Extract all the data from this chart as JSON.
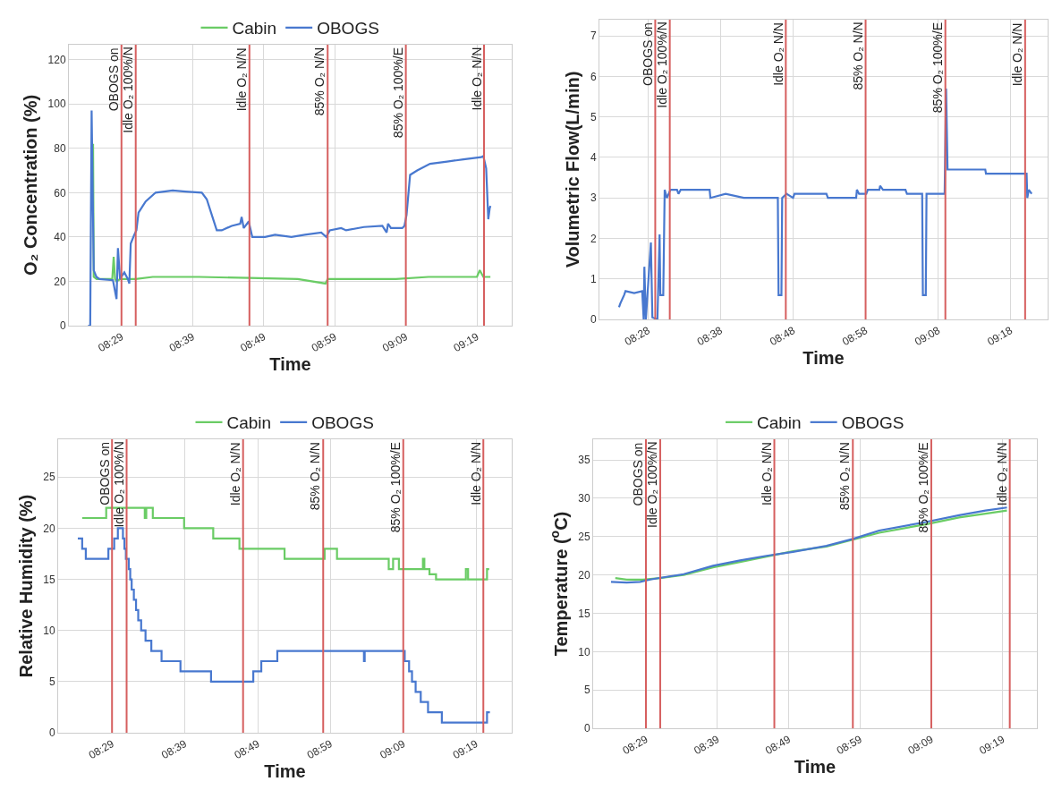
{
  "chart_data": [
    {
      "type": "line",
      "xlabel": "Time",
      "ylabel": "O₂ Concentration (%)",
      "grid": true,
      "legend": "top",
      "xlim": [
        8.36,
        9.3983
      ],
      "xticks": [
        {
          "value": 8.4833,
          "label": "08:29"
        },
        {
          "value": 8.65,
          "label": "08:39"
        },
        {
          "value": 8.8167,
          "label": "08:49"
        },
        {
          "value": 8.9833,
          "label": "08:59"
        },
        {
          "value": 9.15,
          "label": "09:09"
        },
        {
          "value": 9.3167,
          "label": "09:19"
        }
      ],
      "ylim": [
        0,
        126.7
      ],
      "yticks": [
        0,
        20,
        40,
        60,
        80,
        100,
        120
      ],
      "series": [
        {
          "name": "Cabin",
          "color": "#6acc65",
          "x": [
            8.4167,
            8.4183,
            8.425,
            8.4617,
            8.465,
            8.4683,
            8.4717,
            8.48,
            8.5167,
            8.5567,
            8.665,
            8.7817,
            8.8967,
            8.9617,
            8.9667,
            9.1267,
            9.2033,
            9.3167,
            9.3233,
            9.3317,
            9.3483
          ],
          "values": [
            82,
            22,
            21,
            21,
            31,
            21,
            20,
            21,
            21,
            22,
            22,
            21.5,
            21,
            19,
            21,
            21,
            22,
            22,
            25,
            22,
            22
          ]
        },
        {
          "name": "OBOGS",
          "color": "#4878cf",
          "x": [
            8.405,
            8.41,
            8.4133,
            8.4183,
            8.4245,
            8.4317,
            8.4633,
            8.4717,
            8.475,
            8.48,
            8.49,
            8.4983,
            8.5017,
            8.505,
            8.5133,
            8.5183,
            8.5233,
            8.5333,
            8.54,
            8.5633,
            8.6033,
            8.6333,
            8.6717,
            8.6833,
            8.695,
            8.7067,
            8.7183,
            8.7417,
            8.7617,
            8.765,
            8.77,
            8.7817,
            8.79,
            8.82,
            8.8433,
            8.8817,
            8.9133,
            8.9517,
            8.9633,
            8.9717,
            8.9983,
            9.01,
            9.0517,
            9.095,
            9.105,
            9.1083,
            9.115,
            9.1417,
            9.1467,
            9.1517,
            9.16,
            9.1767,
            9.2067,
            9.2467,
            9.285,
            9.3267,
            9.3317,
            9.3383,
            9.3433,
            9.3467,
            9.3483
          ],
          "values": [
            0,
            0,
            97,
            25,
            22,
            21,
            20.5,
            12,
            35,
            21,
            24,
            21,
            19,
            37,
            41,
            43,
            51,
            54,
            56,
            60,
            61,
            60.5,
            60,
            57,
            50,
            43,
            43,
            45,
            46,
            49,
            44,
            47,
            40,
            40,
            41,
            40,
            41,
            42,
            40,
            43,
            44,
            43,
            44.5,
            45,
            42,
            46,
            44,
            44,
            45,
            50,
            68,
            70,
            73,
            74,
            75,
            76,
            76.5,
            71,
            48,
            53,
            54
          ]
        }
      ],
      "ref_lines": [
        {
          "axis": "x",
          "value": 8.4833,
          "label": "OBOGS on",
          "color": "#d65f5f"
        },
        {
          "axis": "x",
          "value": 8.5167,
          "label": "Idle O₂ 100%/N",
          "color": "#d65f5f"
        },
        {
          "axis": "x",
          "value": 8.7833,
          "label": "Idle O₂ N/N",
          "color": "#d65f5f"
        },
        {
          "axis": "x",
          "value": 8.9667,
          "label": "85% O₂ N/N",
          "color": "#d65f5f"
        },
        {
          "axis": "x",
          "value": 9.15,
          "label": "85% O₂ 100%/E",
          "color": "#d65f5f"
        },
        {
          "axis": "x",
          "value": 9.3333,
          "label": "Idle O₂ N/N",
          "color": "#d65f5f"
        }
      ]
    },
    {
      "type": "line",
      "xlabel": "Time",
      "ylabel": "Volumetric Flow(L/min)",
      "grid": true,
      "xlim": [
        8.355,
        9.385
      ],
      "xticks": [
        {
          "value": 8.4667,
          "label": "08:28"
        },
        {
          "value": 8.6333,
          "label": "08:38"
        },
        {
          "value": 8.8,
          "label": "08:48"
        },
        {
          "value": 8.9667,
          "label": "08:58"
        },
        {
          "value": 9.1333,
          "label": "09:08"
        },
        {
          "value": 9.3,
          "label": "09:18"
        }
      ],
      "ylim": [
        0,
        7.4
      ],
      "yticks": [
        0,
        1,
        2,
        3,
        4,
        5,
        6,
        7
      ],
      "series": [
        {
          "color": "#4878cf",
          "x": [
            8.4,
            8.4033,
            8.4117,
            8.415,
            8.435,
            8.4533,
            8.4567,
            8.4583,
            8.4617,
            8.4733,
            8.4767,
            8.4883,
            8.4933,
            8.495,
            8.5017,
            8.505,
            8.51,
            8.5183,
            8.5333,
            8.5367,
            8.5417,
            8.6083,
            8.61,
            8.645,
            8.6867,
            8.765,
            8.7667,
            8.7733,
            8.775,
            8.785,
            8.8,
            8.8033,
            8.8767,
            8.88,
            8.945,
            8.9467,
            8.9517,
            8.9683,
            8.9717,
            8.9983,
            9.0,
            9.0067,
            9.0583,
            9.0617,
            9.0967,
            9.0983,
            9.105,
            9.1067,
            9.1483,
            9.1517,
            9.155,
            9.2417,
            9.2433,
            9.3367,
            9.3383,
            9.3417,
            9.3483
          ],
          "values": [
            0.3,
            0.4,
            0.6,
            0.7,
            0.65,
            0.7,
            0,
            1.3,
            0,
            1.9,
            0.05,
            0,
            2.1,
            0.6,
            0.6,
            3.2,
            3.0,
            3.2,
            3.2,
            3.1,
            3.2,
            3.2,
            3.0,
            3.1,
            3.0,
            3.0,
            0.6,
            0.6,
            3.0,
            3.1,
            3.0,
            3.1,
            3.1,
            3.0,
            3.0,
            3.2,
            3.1,
            3.1,
            3.2,
            3.2,
            3.3,
            3.2,
            3.2,
            3.1,
            3.1,
            0.6,
            0.6,
            3.1,
            3.1,
            5.7,
            3.7,
            3.7,
            3.6,
            3.6,
            3.0,
            3.2,
            3.1
          ]
        }
      ],
      "ref_lines": [
        {
          "axis": "x",
          "value": 8.4833,
          "label": "OBOGS on",
          "color": "#d65f5f"
        },
        {
          "axis": "x",
          "value": 8.5167,
          "label": "Idle O₂ 100%/N",
          "color": "#d65f5f"
        },
        {
          "axis": "x",
          "value": 8.7833,
          "label": "Idle O₂ N/N",
          "color": "#d65f5f"
        },
        {
          "axis": "x",
          "value": 8.9667,
          "label": "85% O₂ N/N",
          "color": "#d65f5f"
        },
        {
          "axis": "x",
          "value": 9.15,
          "label": "85% O₂ 100%/E",
          "color": "#d65f5f"
        },
        {
          "axis": "x",
          "value": 9.3333,
          "label": "Idle O₂ N/N",
          "color": "#d65f5f"
        }
      ]
    },
    {
      "type": "step",
      "xlabel": "Time",
      "ylabel": "Relative Humidity (%)",
      "grid": true,
      "legend": "top",
      "xlim": [
        8.36,
        9.3983
      ],
      "xticks": [
        {
          "value": 8.4833,
          "label": "08:29"
        },
        {
          "value": 8.65,
          "label": "08:39"
        },
        {
          "value": 8.8167,
          "label": "08:49"
        },
        {
          "value": 8.9833,
          "label": "08:59"
        },
        {
          "value": 9.15,
          "label": "09:09"
        },
        {
          "value": 9.3167,
          "label": "09:19"
        }
      ],
      "ylim": [
        0,
        28.7
      ],
      "yticks": [
        0,
        5,
        10,
        15,
        20,
        25
      ],
      "series": [
        {
          "name": "Cabin",
          "color": "#6acc65",
          "x": [
            8.415,
            8.47,
            8.5583,
            8.5617,
            8.5767,
            8.6483,
            8.715,
            8.775,
            8.8783,
            8.97,
            8.9983,
            9.1167,
            9.1267,
            9.14,
            9.195,
            9.1983,
            9.21,
            9.225,
            9.2933,
            9.2983,
            9.3417,
            9.3467
          ],
          "values": [
            21,
            22,
            21,
            22,
            21,
            20,
            19,
            18,
            17,
            18,
            17,
            16,
            17,
            16,
            17,
            16,
            15.5,
            15,
            16,
            15,
            16,
            16
          ]
        },
        {
          "name": "OBOGS",
          "color": "#4878cf",
          "x": [
            8.405,
            8.415,
            8.4233,
            8.475,
            8.4883,
            8.4967,
            8.5083,
            8.5117,
            8.515,
            8.5217,
            8.525,
            8.5283,
            8.5333,
            8.5383,
            8.5433,
            8.55,
            8.56,
            8.5733,
            8.5967,
            8.64,
            8.71,
            8.8067,
            8.825,
            8.8617,
            9.06,
            9.0617,
            9.1533,
            9.1633,
            9.17,
            9.1783,
            9.19,
            9.2067,
            9.2383,
            9.3417,
            9.3483
          ],
          "values": [
            19,
            18,
            17,
            18,
            19,
            20,
            19,
            18,
            17,
            16,
            15,
            14,
            13,
            12,
            11,
            10,
            9,
            8,
            7,
            6,
            5,
            6,
            7,
            8,
            7,
            8,
            7,
            6,
            5,
            4,
            3,
            2,
            1,
            2,
            2
          ]
        }
      ],
      "ref_lines": [
        {
          "axis": "x",
          "value": 8.4833,
          "label": "OBOGS on",
          "color": "#d65f5f"
        },
        {
          "axis": "x",
          "value": 8.5167,
          "label": "Idle O₂ 100%/N",
          "color": "#d65f5f"
        },
        {
          "axis": "x",
          "value": 8.7833,
          "label": "Idle O₂ N/N",
          "color": "#d65f5f"
        },
        {
          "axis": "x",
          "value": 8.9667,
          "label": "85% O₂ N/N",
          "color": "#d65f5f"
        },
        {
          "axis": "x",
          "value": 9.15,
          "label": "85% O₂ 100%/E",
          "color": "#d65f5f"
        },
        {
          "axis": "x",
          "value": 9.3333,
          "label": "Idle O₂ N/N",
          "color": "#d65f5f"
        }
      ]
    },
    {
      "type": "line",
      "xlabel": "Time",
      "ylabel": "Temperature ($^{o}$C)",
      "grid": true,
      "legend": "top",
      "xlim": [
        8.36,
        9.3967
      ],
      "xticks": [
        {
          "value": 8.4833,
          "label": "08:29"
        },
        {
          "value": 8.65,
          "label": "08:39"
        },
        {
          "value": 8.8167,
          "label": "08:49"
        },
        {
          "value": 8.9833,
          "label": "08:59"
        },
        {
          "value": 9.15,
          "label": "09:09"
        },
        {
          "value": 9.3167,
          "label": "09:19"
        }
      ],
      "ylim": [
        0,
        37.7
      ],
      "yticks": [
        0,
        5,
        10,
        15,
        20,
        25,
        30,
        35
      ],
      "series": [
        {
          "name": "Cabin",
          "color": "#6acc65",
          "x": [
            8.4117,
            8.4383,
            8.4767,
            8.5167,
            8.5717,
            8.64,
            8.7033,
            8.765,
            8.8267,
            8.905,
            8.9667,
            9.0283,
            9.1367,
            9.215,
            9.2767,
            9.3267
          ],
          "values": [
            19.6,
            19.4,
            19.4,
            19.6,
            20.0,
            21.0,
            21.7,
            22.4,
            23.1,
            23.7,
            24.6,
            25.5,
            26.6,
            27.5,
            28.0,
            28.4
          ]
        },
        {
          "name": "OBOGS",
          "color": "#4878cf",
          "x": [
            8.4017,
            8.4383,
            8.47,
            8.4933,
            8.525,
            8.5717,
            8.64,
            8.7033,
            8.765,
            8.8267,
            8.905,
            8.9667,
            9.0283,
            9.1367,
            9.215,
            9.2767,
            9.3267
          ],
          "values": [
            19.1,
            19.0,
            19.1,
            19.4,
            19.7,
            20.1,
            21.2,
            21.9,
            22.5,
            23.0,
            23.8,
            24.7,
            25.8,
            26.9,
            27.8,
            28.4,
            28.8
          ]
        }
      ],
      "ref_lines": [
        {
          "axis": "x",
          "value": 8.4833,
          "label": "OBOGS on",
          "color": "#d65f5f"
        },
        {
          "axis": "x",
          "value": 8.5167,
          "label": "Idle O₂ 100%/N",
          "color": "#d65f5f"
        },
        {
          "axis": "x",
          "value": 8.7833,
          "label": "Idle O₂ N/N",
          "color": "#d65f5f"
        },
        {
          "axis": "x",
          "value": 8.9667,
          "label": "85% O₂ N/N",
          "color": "#d65f5f"
        },
        {
          "axis": "x",
          "value": 9.15,
          "label": "85% O₂ 100%/E",
          "color": "#d65f5f"
        },
        {
          "axis": "x",
          "value": 9.3333,
          "label": "Idle O₂ N/N",
          "color": "#d65f5f"
        }
      ]
    }
  ]
}
